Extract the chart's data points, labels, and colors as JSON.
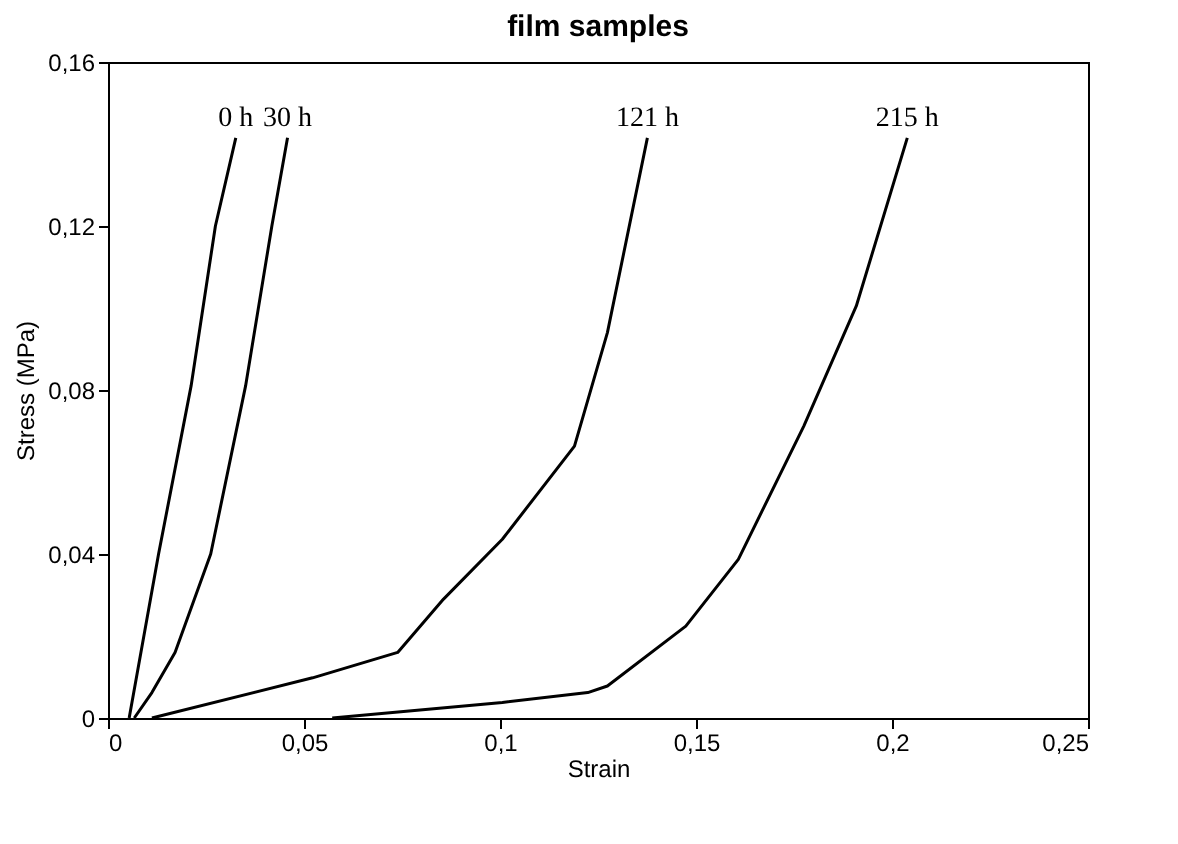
{
  "chart_data": {
    "type": "line",
    "title": "film samples",
    "xlabel": "Strain",
    "ylabel": "Stress (MPa)",
    "xlim": [
      0,
      0.25
    ],
    "ylim": [
      0,
      0.16
    ],
    "xticks": [
      0,
      {
        "value": 0.05,
        "label": "0,05"
      },
      {
        "value": 0.1,
        "label": "0,1"
      },
      {
        "value": 0.15,
        "label": "0,15"
      },
      {
        "value": 0.2,
        "label": "0,2"
      },
      {
        "value": 0.25,
        "label": "0,25"
      }
    ],
    "yticks": [
      0,
      {
        "value": 0.04,
        "label": "0,04"
      },
      {
        "value": 0.08,
        "label": "0,08"
      },
      {
        "value": 0.12,
        "label": "0,12"
      },
      {
        "value": 0.16,
        "label": "0,16"
      }
    ],
    "grid": false,
    "legend": false,
    "line_style": "solid",
    "series": [
      {
        "name": "0 h",
        "color": "#000000",
        "x": [
          0.0054,
          0.0129,
          0.0212,
          0.0274,
          0.0326
        ],
        "values": [
          0,
          0.04,
          0.081,
          0.12,
          0.1415
        ]
      },
      {
        "name": "30 h",
        "color": "#000000",
        "x": [
          0.0067,
          0.0112,
          0.0171,
          0.0262,
          0.0351,
          0.0418,
          0.0458
        ],
        "values": [
          0,
          0.0062,
          0.016,
          0.04,
          0.081,
          0.12,
          0.1415
        ]
      },
      {
        "name": "121 h",
        "color": "#000000",
        "x": [
          0.0112,
          0.0522,
          0.0739,
          0.0856,
          0.1006,
          0.119,
          0.1274,
          0.1376
        ],
        "values": [
          0,
          0.0098,
          0.016,
          0.029,
          0.0436,
          0.0663,
          0.094,
          0.1415
        ]
      },
      {
        "name": "215 h",
        "color": "#000000",
        "x": [
          0.0572,
          0.1006,
          0.1224,
          0.1274,
          0.1474,
          0.1608,
          0.1775,
          0.1909,
          0.2039
        ],
        "values": [
          0,
          0.0038,
          0.0062,
          0.0078,
          0.0224,
          0.0387,
          0.0712,
          0.1005,
          0.1415
        ]
      }
    ]
  }
}
